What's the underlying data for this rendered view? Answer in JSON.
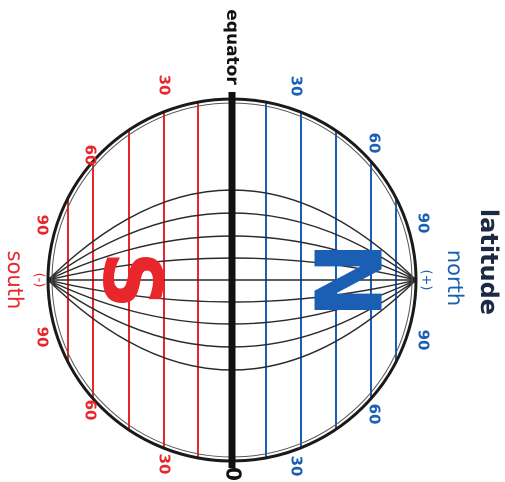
{
  "title": "latitude",
  "equator_label": "equator",
  "zero_label": "0",
  "north": {
    "word": "north",
    "sign": "(+)",
    "letter": "N",
    "color": "#1b5fb5"
  },
  "south": {
    "word": "south",
    "sign": "(-)",
    "letter": "S",
    "color": "#e8262c"
  },
  "line_color": "#2b2b2b",
  "degree_ticks": {
    "north_upper": [
      "30",
      "60",
      "90"
    ],
    "north_lower": [
      "90",
      "60",
      "30"
    ],
    "south_upper": [
      "30",
      "60",
      "90"
    ],
    "south_lower": [
      "90",
      "60",
      "30"
    ]
  }
}
